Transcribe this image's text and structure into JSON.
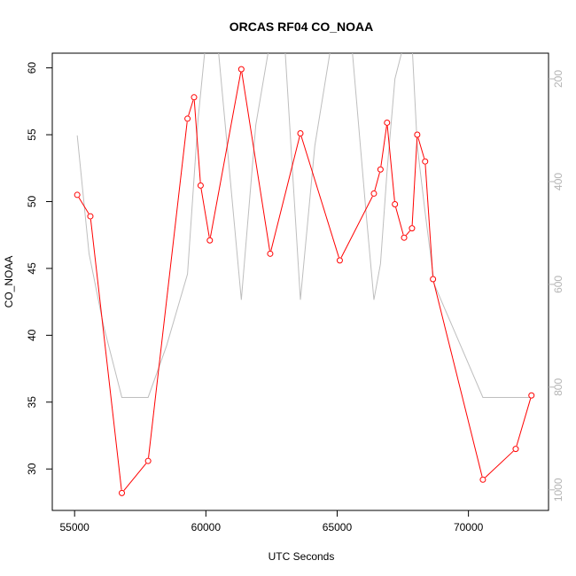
{
  "chart_data": {
    "type": "line",
    "title": "ORCAS RF04 CO_NOAA",
    "xlabel": "UTC Seconds",
    "ylabel": "CO_NOAA",
    "xlim": [
      54150,
      73050
    ],
    "ylim": [
      26.9,
      61.1
    ],
    "y2lim": [
      1040,
      150
    ],
    "x_ticks": [
      55000,
      60000,
      65000,
      70000
    ],
    "y_ticks": [
      30,
      35,
      40,
      45,
      50,
      55,
      60
    ],
    "y2_ticks": [
      200,
      400,
      600,
      800,
      1000
    ],
    "grid": false,
    "colors": {
      "primary": "#ff0000",
      "secondary": "#bebebe",
      "right_axis": "#b4b4b4"
    },
    "series": [
      {
        "axis": "left",
        "style": "line+points",
        "x": [
          55100,
          55600,
          56800,
          57800,
          59300,
          59550,
          59800,
          60150,
          61350,
          62450,
          63600,
          65100,
          66400,
          66650,
          66900,
          67200,
          67550,
          67850,
          68050,
          68350,
          68650,
          70550,
          71800,
          72400
        ],
        "y": [
          50.5,
          48.9,
          28.2,
          30.6,
          56.2,
          57.8,
          51.2,
          47.1,
          59.9,
          46.1,
          55.1,
          45.6,
          50.6,
          52.4,
          55.9,
          49.8,
          47.3,
          48.0,
          55.0,
          53.0,
          44.2,
          29.2,
          31.5,
          35.5
        ]
      },
      {
        "axis": "right",
        "style": "line",
        "x": [
          55100,
          55550,
          56100,
          56800,
          57800,
          58500,
          59300,
          59700,
          60000,
          60450,
          61350,
          61900,
          62450,
          63000,
          63600,
          64150,
          64800,
          65100,
          65550,
          66100,
          66400,
          66650,
          66900,
          67200,
          67550,
          67850,
          68050,
          68350,
          68700,
          70550,
          71800,
          72400
        ],
        "y": [
          310,
          540,
          680,
          820,
          820,
          720,
          580,
          280,
          125,
          130,
          630,
          290,
          125,
          130,
          630,
          330,
          125,
          125,
          130,
          460,
          630,
          560,
          380,
          200,
          130,
          130,
          330,
          460,
          600,
          820,
          820,
          820
        ]
      }
    ]
  }
}
